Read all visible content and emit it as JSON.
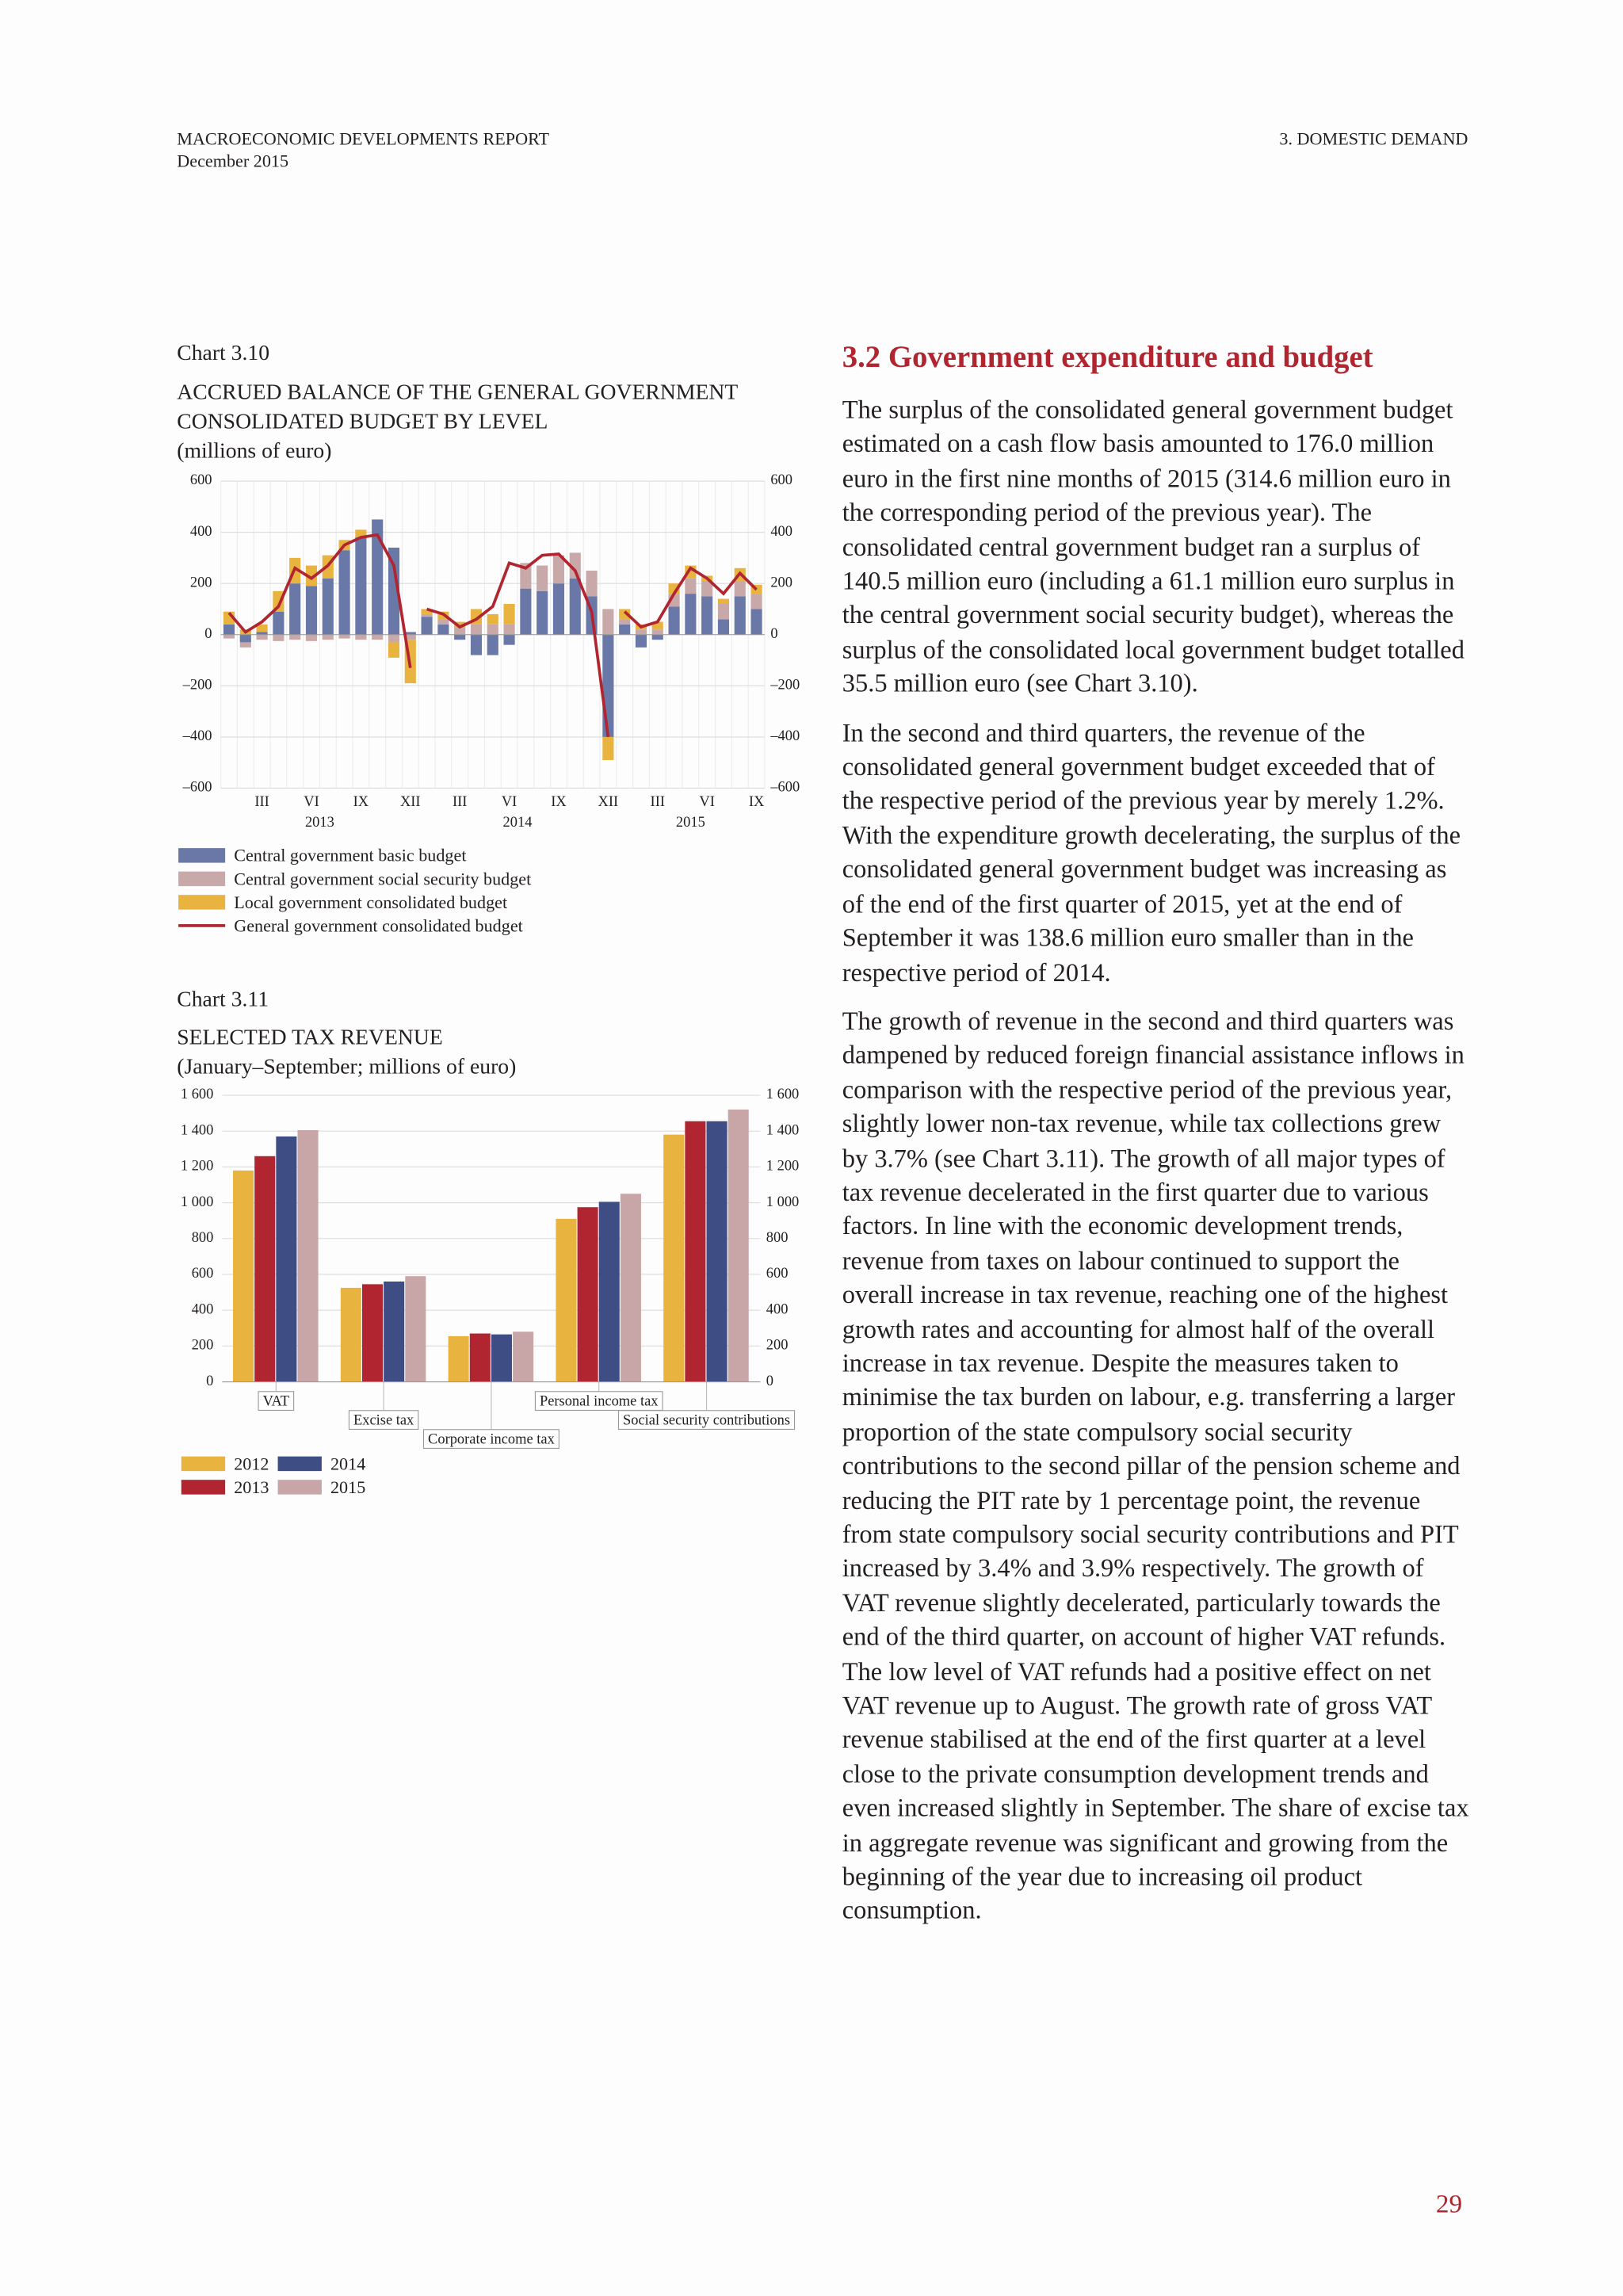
{
  "header": {
    "left_title": "MACROECONOMIC DEVELOPMENTS REPORT",
    "date": "December 2015",
    "right_title": "3. DOMESTIC DEMAND"
  },
  "chart_data": [
    {
      "type": "combo",
      "label": "Chart 3.10",
      "title": [
        "ACCRUED BALANCE OF THE GENERAL GOVERNMENT",
        "CONSOLIDATED BUDGET BY LEVEL"
      ],
      "subtitle": "(millions of euro)",
      "categories": [
        null,
        null,
        "III",
        null,
        null,
        "VI",
        null,
        null,
        "IX",
        null,
        null,
        "XII",
        null,
        null,
        "III",
        null,
        null,
        "VI",
        null,
        null,
        "IX",
        null,
        null,
        "XII",
        null,
        null,
        "III",
        null,
        null,
        "VI",
        null,
        null,
        "IX"
      ],
      "year_labels": [
        "2013",
        "2014",
        "2015"
      ],
      "series": [
        {
          "name": "Central government basic budget",
          "type": "bar",
          "color": "#6a78a8",
          "values": [
            40,
            -30,
            10,
            90,
            200,
            190,
            220,
            330,
            380,
            450,
            340,
            10,
            70,
            40,
            -20,
            -80,
            -80,
            -40,
            180,
            170,
            200,
            220,
            150,
            -400,
            40,
            -50,
            -20,
            110,
            160,
            150,
            60,
            150,
            100
          ]
        },
        {
          "name": "Central government social security budget",
          "type": "bar",
          "color": "#c9a8aa",
          "values": [
            -15,
            -20,
            -20,
            -25,
            -20,
            -25,
            -20,
            -15,
            -20,
            -20,
            -30,
            -20,
            10,
            20,
            30,
            40,
            40,
            40,
            100,
            100,
            110,
            100,
            100,
            100,
            20,
            20,
            20,
            50,
            60,
            60,
            60,
            60,
            60
          ]
        },
        {
          "name": "Local government consolidated budget",
          "type": "bar",
          "color": "#e8b33f",
          "values": [
            50,
            20,
            30,
            80,
            100,
            80,
            90,
            40,
            30,
            0,
            -60,
            -170,
            20,
            30,
            20,
            60,
            40,
            80,
            0,
            0,
            0,
            0,
            0,
            -90,
            40,
            20,
            30,
            40,
            50,
            20,
            20,
            50,
            35
          ]
        },
        {
          "name": "General government consolidated budget",
          "type": "line",
          "color": "#b0252f",
          "values": [
            85,
            10,
            50,
            110,
            260,
            220,
            270,
            350,
            380,
            390,
            270,
            -130,
            100,
            80,
            30,
            60,
            110,
            280,
            260,
            310,
            315,
            250,
            90,
            -400,
            90,
            30,
            50,
            160,
            260,
            220,
            160,
            240,
            176
          ]
        }
      ],
      "ylim": [
        -600,
        600
      ],
      "yticks": [
        {
          "value": -600,
          "label": "–600"
        },
        {
          "value": -400,
          "label": "–400"
        },
        {
          "value": -200,
          "label": "–200"
        },
        0,
        200,
        400,
        600
      ],
      "grid": true
    },
    {
      "type": "bar",
      "label": "Chart 3.11",
      "title": [
        "SELECTED TAX REVENUE"
      ],
      "subtitle": "(January–September; millions of euro)",
      "categories": [
        "VAT",
        "Excise tax",
        "Corporate income tax",
        "Personal income tax",
        "Social security contributions"
      ],
      "series": [
        {
          "name": "2012",
          "color": "#e8b33f",
          "values": [
            1180,
            525,
            255,
            910,
            1380
          ]
        },
        {
          "name": "2013",
          "color": "#b0252f",
          "values": [
            1260,
            545,
            270,
            975,
            1455
          ]
        },
        {
          "name": "2014",
          "color": "#3e4e85",
          "values": [
            1370,
            560,
            265,
            1005,
            1455
          ]
        },
        {
          "name": "2015",
          "color": "#c8a5a7",
          "values": [
            1405,
            590,
            280,
            1050,
            1520
          ]
        }
      ],
      "ylim": [
        0,
        1600
      ],
      "yticks": [
        0,
        200,
        400,
        600,
        800,
        {
          "value": 1000,
          "label": "1 000"
        },
        {
          "value": 1200,
          "label": "1 200"
        },
        {
          "value": 1400,
          "label": "1 400"
        },
        {
          "value": 1600,
          "label": "1 600"
        }
      ],
      "grid": true
    }
  ],
  "section": {
    "heading": "3.2 Government expenditure and budget",
    "paragraphs": [
      "The surplus of the consolidated general government budget estimated on a cash flow basis amounted to 176.0 million euro in the first nine months of 2015 (314.6 million euro in the corresponding period of the previous year). The consolidated central government budget ran a surplus of 140.5 million euro (including a 61.1 million euro surplus in the central government social security budget), whereas the surplus of the consolidated local government budget totalled 35.5 million euro (see Chart 3.10).",
      "In the second and third quarters, the revenue of the consolidated general government budget exceeded that of the respective period of the previous year by merely 1.2%. With the expenditure growth decelerating, the surplus of the consolidated general government budget was increasing as of the end of the first quarter of 2015, yet at the end of September it was 138.6 million euro smaller than in the respective period of 2014.",
      "The growth of revenue in the second and third quarters was dampened by reduced foreign financial assistance inflows in comparison with the respective period of the previous year, slightly lower non-tax revenue, while tax collections grew by 3.7% (see Chart 3.11). The growth of all major types of tax revenue decelerated in the first quarter due to various factors. In line with the economic development trends, revenue from taxes on labour continued to support the overall increase in tax revenue, reaching one of the highest growth rates and accounting for almost half of the overall increase in tax revenue. Despite the measures taken to minimise the tax burden on labour, e.g. transferring a larger proportion of the state compulsory social security contributions to the second pillar of the pension scheme and reducing the PIT rate by 1 percentage point, the revenue from state compulsory social security contributions and PIT increased by 3.4% and 3.9% respectively. The growth of VAT revenue slightly decelerated, particularly towards the end of the third quarter, on account of higher VAT refunds. The low level of VAT refunds had a positive effect on net VAT revenue up to August. The growth rate of gross VAT revenue stabilised at the end of the first quarter at a level close to the private consumption development trends and even increased slightly in September. The share of excise tax in aggregate revenue was significant and growing from the beginning of the year due to increasing oil product consumption."
    ]
  },
  "page_number": "29"
}
